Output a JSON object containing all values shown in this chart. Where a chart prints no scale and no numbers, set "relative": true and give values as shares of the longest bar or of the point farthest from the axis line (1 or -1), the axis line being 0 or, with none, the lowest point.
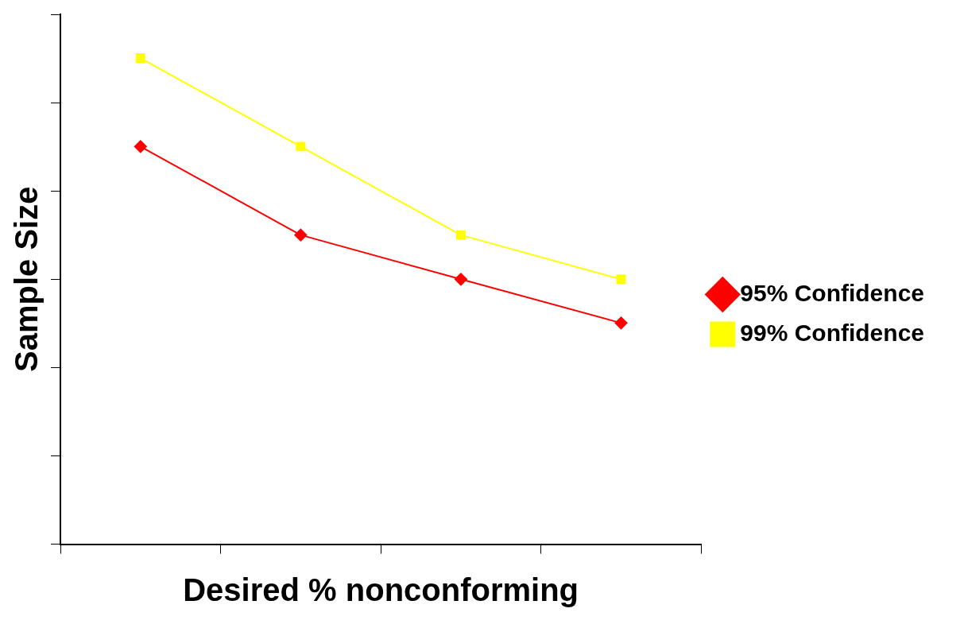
{
  "chart_data": {
    "type": "line",
    "xlabel": "Desired % nonconforming",
    "ylabel": "Sample Size",
    "categories": [
      null,
      null,
      null,
      null
    ],
    "relative": true,
    "legend": "right",
    "grid": false,
    "series": [
      {
        "name": "95% Confidence",
        "color": "#ff0000",
        "marker": "diamond",
        "values": [
          0.818,
          0.636,
          0.545,
          0.455
        ]
      },
      {
        "name": "99% Confidence",
        "color": "#ffff00",
        "marker": "square",
        "values": [
          1,
          0.818,
          0.636,
          0.545
        ]
      }
    ]
  }
}
